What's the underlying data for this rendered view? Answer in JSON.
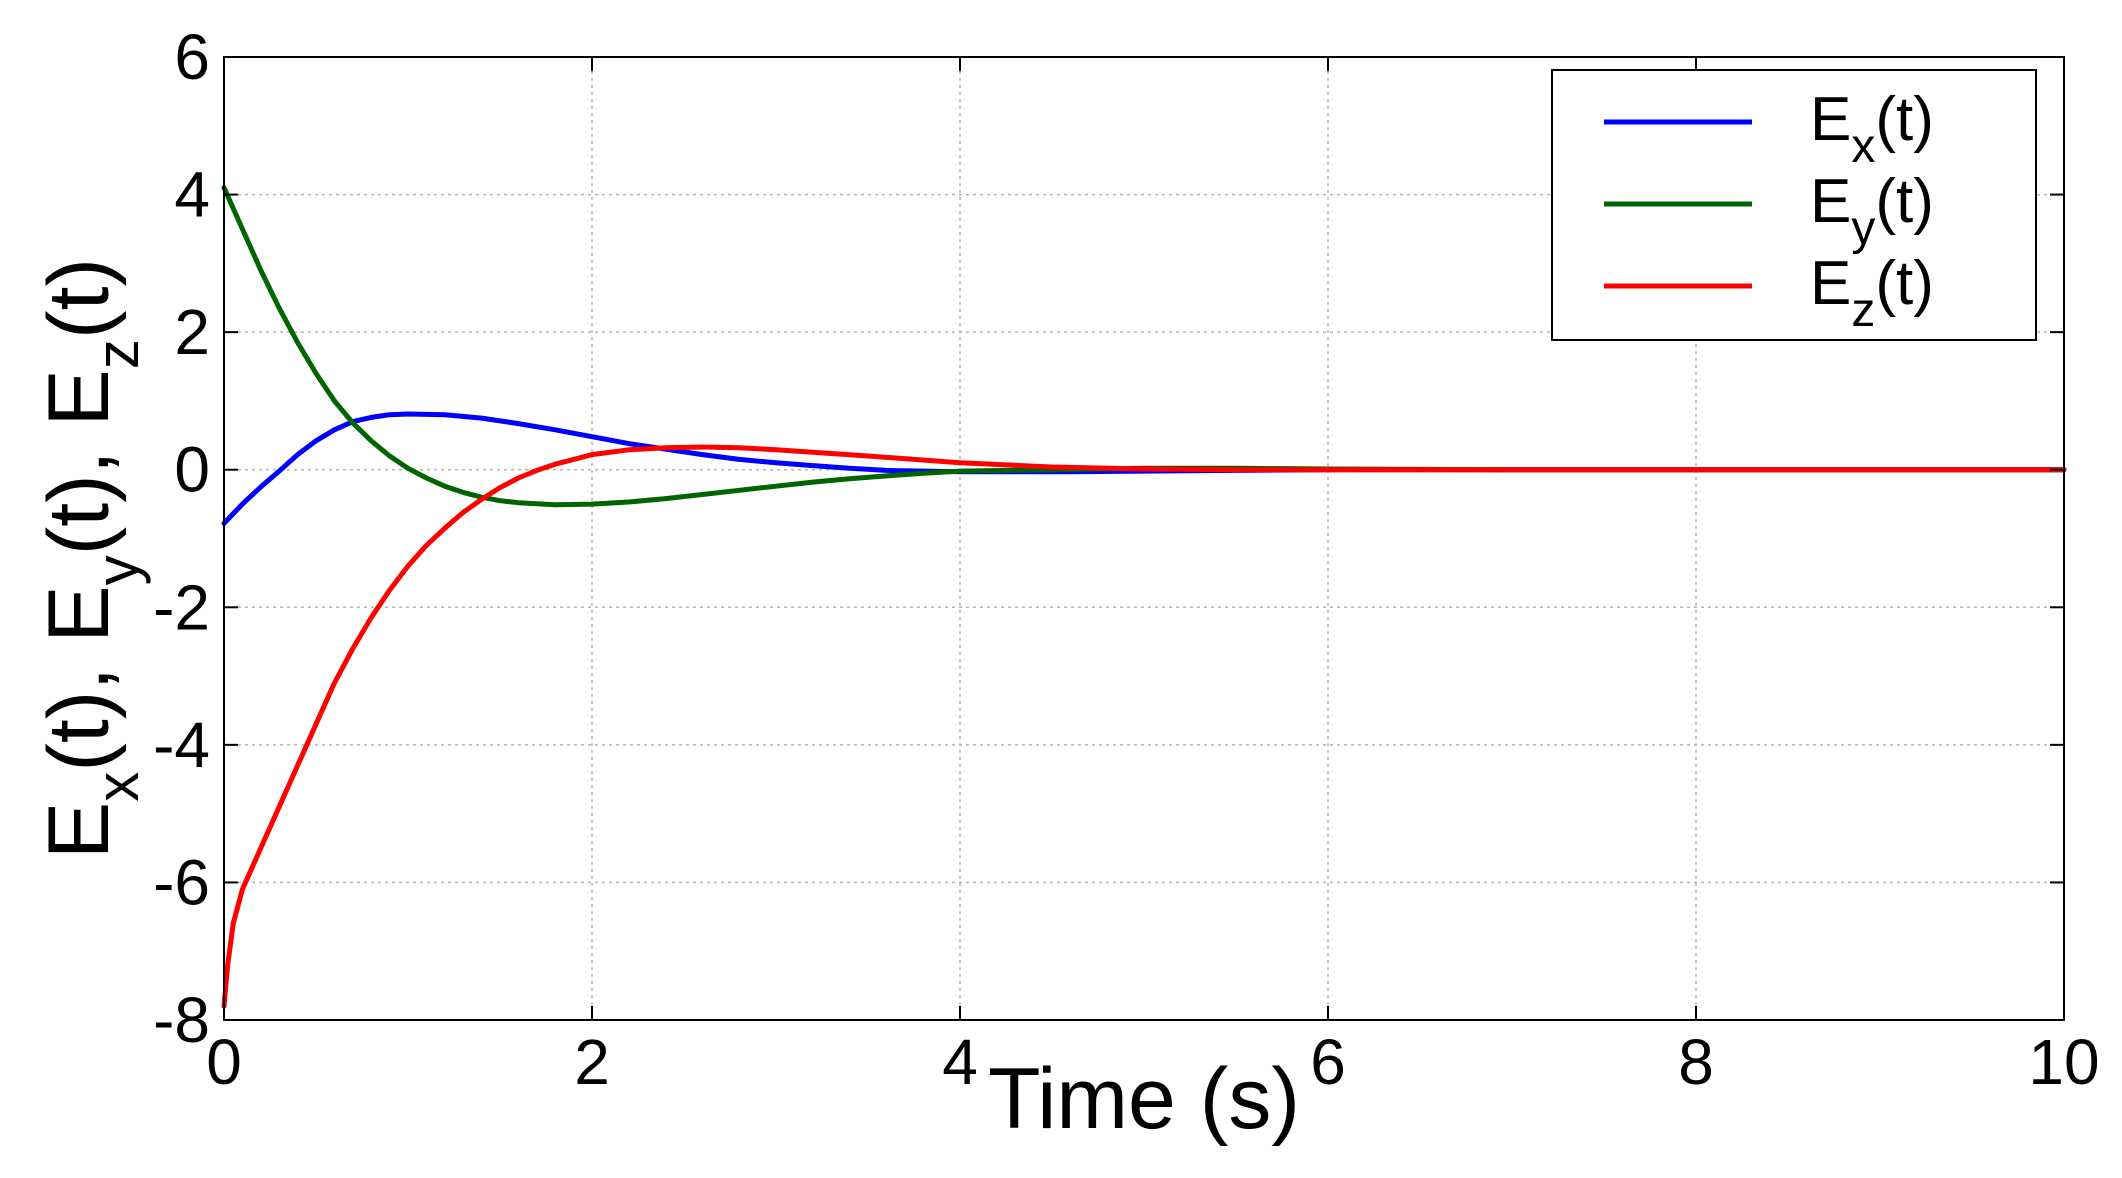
{
  "chart_data": {
    "type": "line",
    "title": "",
    "xlabel": "Time (s)",
    "ylabel": {
      "parts": [
        {
          "base": "E",
          "sub": "x",
          "tail": "(t), "
        },
        {
          "base": "E",
          "sub": "y",
          "tail": "(t), "
        },
        {
          "base": "E",
          "sub": "z",
          "tail": "(t)"
        }
      ]
    },
    "xlim": [
      0,
      10
    ],
    "ylim": [
      -8,
      6
    ],
    "xticks": [
      0,
      2,
      4,
      6,
      8,
      10
    ],
    "yticks": [
      -8,
      -6,
      -4,
      -2,
      0,
      2,
      4,
      6
    ],
    "grid": true,
    "legend_position": "top-right",
    "series": [
      {
        "name": {
          "base": "E",
          "sub": "x",
          "tail": "(t)"
        },
        "color": "#0000ff",
        "x": [
          0,
          0.1,
          0.2,
          0.3,
          0.4,
          0.5,
          0.6,
          0.7,
          0.8,
          0.9,
          1.0,
          1.2,
          1.4,
          1.6,
          1.8,
          2.0,
          2.2,
          2.4,
          2.6,
          2.8,
          3.0,
          3.2,
          3.4,
          3.6,
          3.8,
          4.0,
          4.3,
          4.6,
          5.0,
          5.5,
          6.0,
          7.0,
          8.0,
          9.0,
          10.0
        ],
        "y": [
          -0.78,
          -0.5,
          -0.25,
          -0.02,
          0.22,
          0.42,
          0.58,
          0.7,
          0.76,
          0.8,
          0.81,
          0.8,
          0.75,
          0.67,
          0.58,
          0.48,
          0.38,
          0.3,
          0.22,
          0.15,
          0.1,
          0.06,
          0.02,
          -0.01,
          -0.02,
          -0.03,
          -0.03,
          -0.03,
          -0.02,
          -0.01,
          0.0,
          0.0,
          0.0,
          0.0,
          0.0
        ]
      },
      {
        "name": {
          "base": "E",
          "sub": "y",
          "tail": "(t)"
        },
        "color": "#006400",
        "x": [
          0,
          0.1,
          0.2,
          0.3,
          0.4,
          0.5,
          0.6,
          0.7,
          0.8,
          0.9,
          1.0,
          1.1,
          1.2,
          1.3,
          1.4,
          1.5,
          1.6,
          1.8,
          2.0,
          2.2,
          2.4,
          2.6,
          2.8,
          3.0,
          3.2,
          3.4,
          3.6,
          3.8,
          4.0,
          4.5,
          5.0,
          5.5,
          6.0,
          7.0,
          8.0,
          9.0,
          10.0
        ],
        "y": [
          4.1,
          3.5,
          2.9,
          2.35,
          1.85,
          1.4,
          1.0,
          0.68,
          0.42,
          0.2,
          0.02,
          -0.12,
          -0.24,
          -0.33,
          -0.4,
          -0.45,
          -0.48,
          -0.51,
          -0.5,
          -0.47,
          -0.42,
          -0.36,
          -0.3,
          -0.24,
          -0.18,
          -0.13,
          -0.09,
          -0.05,
          -0.02,
          0.0,
          0.02,
          0.02,
          0.01,
          0.0,
          0.0,
          0.0,
          0.0
        ]
      },
      {
        "name": {
          "base": "E",
          "sub": "z",
          "tail": "(t)"
        },
        "color": "#ff0000",
        "x": [
          0,
          0.02,
          0.05,
          0.1,
          0.15,
          0.2,
          0.3,
          0.4,
          0.5,
          0.6,
          0.7,
          0.8,
          0.9,
          1.0,
          1.1,
          1.2,
          1.3,
          1.4,
          1.5,
          1.6,
          1.7,
          1.8,
          1.9,
          2.0,
          2.2,
          2.4,
          2.6,
          2.8,
          3.0,
          3.5,
          4.0,
          4.5,
          5.0,
          5.5,
          6.0,
          7.0,
          8.0,
          9.0,
          10.0
        ],
        "y": [
          -7.8,
          -7.2,
          -6.6,
          -6.1,
          -5.8,
          -5.5,
          -4.9,
          -4.3,
          -3.7,
          -3.1,
          -2.6,
          -2.15,
          -1.75,
          -1.4,
          -1.1,
          -0.85,
          -0.62,
          -0.43,
          -0.26,
          -0.12,
          -0.01,
          0.08,
          0.15,
          0.22,
          0.29,
          0.32,
          0.33,
          0.32,
          0.29,
          0.2,
          0.1,
          0.04,
          0.01,
          0.0,
          0.0,
          0.0,
          0.0,
          0.0,
          0.0
        ]
      }
    ]
  }
}
